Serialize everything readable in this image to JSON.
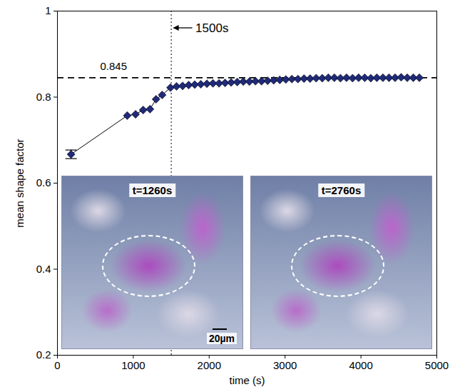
{
  "chart_data": {
    "type": "line",
    "marker": "diamond",
    "color": "#1f2a78",
    "x_label": "time (s)",
    "y_label": "mean shape factor",
    "x": [
      180,
      920,
      1030,
      1130,
      1220,
      1300,
      1380,
      1490,
      1570,
      1650,
      1730,
      1810,
      1890,
      1970,
      2050,
      2130,
      2210,
      2290,
      2370,
      2450,
      2530,
      2610,
      2690,
      2770,
      2850,
      2930,
      3010,
      3090,
      3170,
      3250,
      3330,
      3410,
      3490,
      3570,
      3650,
      3730,
      3810,
      3890,
      3970,
      4050,
      4130,
      4210,
      4290,
      4370,
      4450,
      4530,
      4610,
      4690,
      4770
    ],
    "values": [
      0.667,
      0.757,
      0.76,
      0.77,
      0.772,
      0.795,
      0.805,
      0.822,
      0.825,
      0.826,
      0.828,
      0.829,
      0.83,
      0.831,
      0.832,
      0.832,
      0.833,
      0.834,
      0.835,
      0.836,
      0.836,
      0.837,
      0.837,
      0.838,
      0.839,
      0.84,
      0.841,
      0.842,
      0.842,
      0.843,
      0.843,
      0.844,
      0.844,
      0.845,
      0.845,
      0.844,
      0.845,
      0.844,
      0.845,
      0.845,
      0.844,
      0.845,
      0.845,
      0.845,
      0.845,
      0.846,
      0.845,
      0.845,
      0.845
    ],
    "errors": [
      0.01,
      null,
      null,
      null,
      null,
      null,
      null,
      null,
      null,
      null,
      null,
      null,
      null,
      null,
      null,
      null,
      null,
      null,
      null,
      null,
      null,
      null,
      null,
      null,
      null,
      null,
      null,
      null,
      null,
      null,
      null,
      null,
      null,
      null,
      null,
      null,
      null,
      null,
      null,
      null,
      null,
      null,
      null,
      null,
      null,
      null,
      null,
      null,
      null
    ],
    "xlim": [
      0,
      5000
    ],
    "xticks": [
      0,
      1000,
      2000,
      3000,
      4000,
      5000
    ],
    "ylim": [
      0.2,
      1
    ],
    "yticks": [
      0.2,
      0.4,
      0.6,
      0.8,
      1
    ],
    "grid": false,
    "annotations": [
      {
        "type": "hline",
        "y": 0.845,
        "label": "0.845",
        "line_style": "dashed"
      },
      {
        "type": "vline",
        "x": 1500,
        "label": "1500s",
        "line_style": "dotted"
      }
    ],
    "insets": [
      {
        "label": "t=1260s",
        "scale_bar": "20µm"
      },
      {
        "label": "t=2760s"
      }
    ]
  }
}
